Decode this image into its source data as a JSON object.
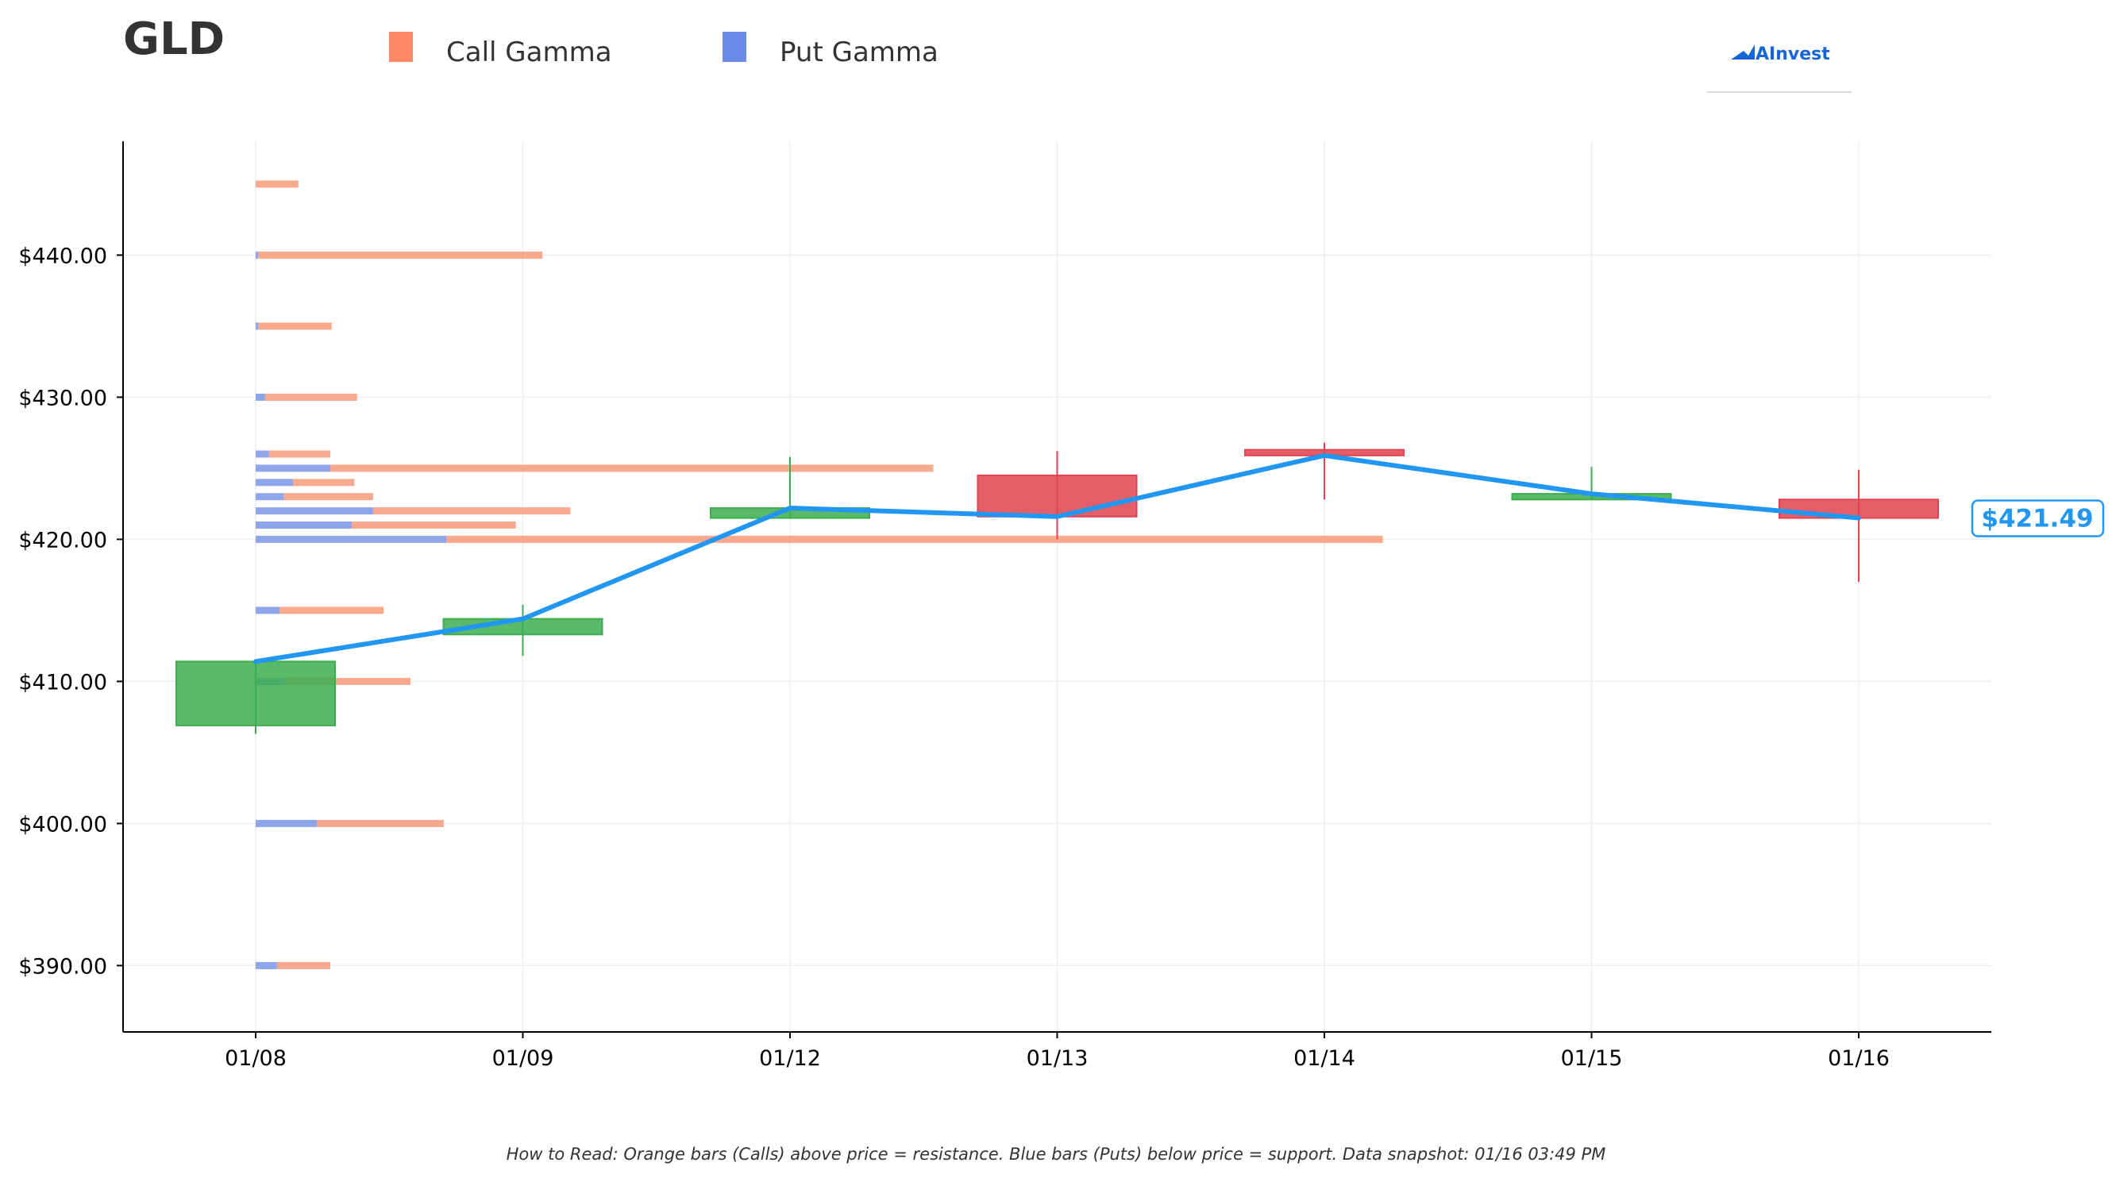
{
  "chart_data": {
    "type": "candlestick",
    "title": "GLD",
    "legend": {
      "placement": "top-left",
      "entries": [
        {
          "name": "Call Gamma",
          "color": "#ff8a65"
        },
        {
          "name": "Put Gamma",
          "color": "#6a8be8"
        }
      ]
    },
    "brand": "AInvest",
    "ylim": [
      385,
      448
    ],
    "y_ticks": [
      390,
      400,
      410,
      420,
      430,
      440
    ],
    "y_tick_labels": [
      "$390.00",
      "$400.00",
      "$410.00",
      "$420.00",
      "$430.00",
      "$440.00"
    ],
    "categories": [
      "01/08",
      "01/09",
      "01/12",
      "01/13",
      "01/14",
      "01/15",
      "01/16"
    ],
    "candles": [
      {
        "date": "01/08",
        "open": 406.9,
        "high": 411.4,
        "low": 406.3,
        "close": 411.4
      },
      {
        "date": "01/09",
        "open": 413.3,
        "high": 415.4,
        "low": 411.8,
        "close": 414.4
      },
      {
        "date": "01/12",
        "open": 421.5,
        "high": 425.8,
        "low": 421.5,
        "close": 422.2
      },
      {
        "date": "01/13",
        "open": 424.5,
        "high": 426.2,
        "low": 420.0,
        "close": 421.6
      },
      {
        "date": "01/14",
        "open": 426.3,
        "high": 426.8,
        "low": 422.8,
        "close": 425.9
      },
      {
        "date": "01/15",
        "open": 422.8,
        "high": 425.1,
        "low": 422.8,
        "close": 423.2
      },
      {
        "date": "01/16",
        "open": 422.8,
        "high": 424.9,
        "low": 417.0,
        "close": 421.5
      }
    ],
    "close_line": {
      "color": "#2196f3",
      "values": [
        411.4,
        414.4,
        422.2,
        421.6,
        425.9,
        423.2,
        421.5
      ]
    },
    "current_price_label": "$421.49",
    "gamma_bars": [
      {
        "strike": 445,
        "call": 0.32,
        "put": 0.0
      },
      {
        "strike": 440,
        "call": 2.13,
        "put": 0.02
      },
      {
        "strike": 435,
        "call": 0.55,
        "put": 0.02
      },
      {
        "strike": 430,
        "call": 0.69,
        "put": 0.07
      },
      {
        "strike": 426,
        "call": 0.46,
        "put": 0.1
      },
      {
        "strike": 425,
        "call": 4.52,
        "put": 0.56
      },
      {
        "strike": 424,
        "call": 0.46,
        "put": 0.28
      },
      {
        "strike": 423,
        "call": 0.67,
        "put": 0.21
      },
      {
        "strike": 422,
        "call": 1.48,
        "put": 0.88
      },
      {
        "strike": 421,
        "call": 1.23,
        "put": 0.72
      },
      {
        "strike": 420,
        "call": 7.02,
        "put": 1.43
      },
      {
        "strike": 415,
        "call": 0.78,
        "put": 0.18
      },
      {
        "strike": 410,
        "call": 0.94,
        "put": 0.22
      },
      {
        "strike": 400,
        "call": 0.95,
        "put": 0.46
      },
      {
        "strike": 390,
        "call": 0.4,
        "put": 0.16
      }
    ],
    "footnote": "How to Read: Orange bars (Calls) above price = resistance. Blue bars (Puts) below price = support. Data snapshot: 01/16 03:49 PM",
    "colors": {
      "up": "#3cae4f",
      "down": "#e0434f",
      "call": "#f79470",
      "put": "#7d96e6",
      "grid": "#eeeeee",
      "axis": "#000000"
    },
    "grid": true
  }
}
